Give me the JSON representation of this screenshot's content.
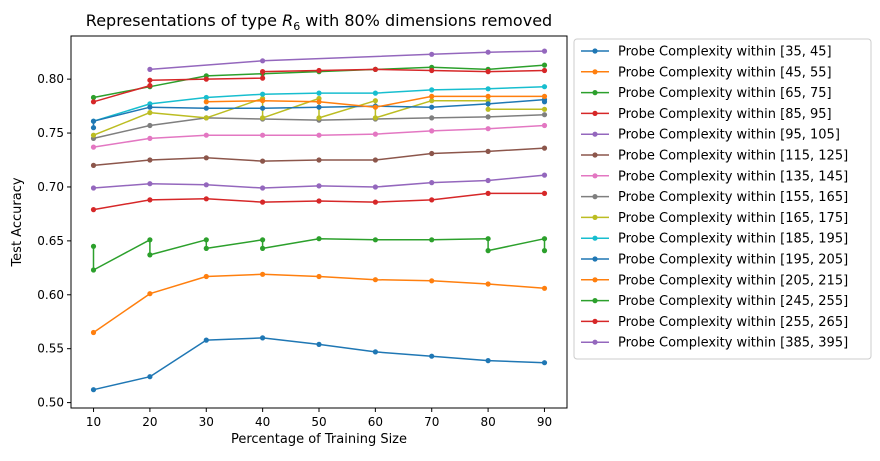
{
  "chart_data": {
    "type": "line",
    "title_prefix": "Representations of type ",
    "title_symbol": "R",
    "title_subscript": "6",
    "title_suffix": " with 80% dimensions removed",
    "xlabel": "Percentage of Training Size",
    "ylabel": "Test Accuracy",
    "xlim": [
      6,
      94
    ],
    "ylim": [
      0.495,
      0.84
    ],
    "xticks": [
      10,
      20,
      30,
      40,
      50,
      60,
      70,
      80,
      90
    ],
    "yticks": [
      0.5,
      0.55,
      0.6,
      0.65,
      0.7,
      0.75,
      0.8
    ],
    "ytick_labels": [
      "0.50",
      "0.55",
      "0.60",
      "0.65",
      "0.70",
      "0.75",
      "0.80"
    ],
    "grid": false,
    "legend_position": "outside-right",
    "series": [
      {
        "name": "Probe Complexity within [35, 45]",
        "color": "#1f77b4",
        "points": [
          [
            10,
            0.512
          ],
          [
            20,
            0.524
          ],
          [
            30,
            0.558
          ],
          [
            40,
            0.56
          ],
          [
            50,
            0.554
          ],
          [
            60,
            0.547
          ],
          [
            70,
            0.543
          ],
          [
            80,
            0.539
          ],
          [
            90,
            0.537
          ]
        ]
      },
      {
        "name": "Probe Complexity within [45, 55]",
        "color": "#ff7f0e",
        "points": [
          [
            10,
            0.565
          ],
          [
            20,
            0.601
          ],
          [
            30,
            0.617
          ],
          [
            40,
            0.619
          ],
          [
            50,
            0.617
          ],
          [
            60,
            0.614
          ],
          [
            70,
            0.613
          ],
          [
            80,
            0.61
          ],
          [
            90,
            0.606
          ]
        ]
      },
      {
        "name": "Probe Complexity within [65, 75]",
        "color": "#2ca02c",
        "points": [
          [
            10,
            0.645
          ],
          [
            10,
            0.623
          ],
          [
            20,
            0.651
          ],
          [
            20,
            0.637
          ],
          [
            30,
            0.651
          ],
          [
            30,
            0.643
          ],
          [
            40,
            0.651
          ],
          [
            40,
            0.643
          ],
          [
            50,
            0.652
          ],
          [
            60,
            0.651
          ],
          [
            70,
            0.651
          ],
          [
            80,
            0.652
          ],
          [
            80,
            0.641
          ],
          [
            90,
            0.652
          ],
          [
            90,
            0.641
          ]
        ]
      },
      {
        "name": "Probe Complexity within [85, 95]",
        "color": "#d62728",
        "points": [
          [
            10,
            0.679
          ],
          [
            20,
            0.688
          ],
          [
            30,
            0.689
          ],
          [
            40,
            0.686
          ],
          [
            50,
            0.687
          ],
          [
            60,
            0.686
          ],
          [
            70,
            0.688
          ],
          [
            80,
            0.694
          ],
          [
            90,
            0.694
          ]
        ]
      },
      {
        "name": "Probe Complexity within [95, 105]",
        "color": "#9467bd",
        "points": [
          [
            10,
            0.699
          ],
          [
            20,
            0.703
          ],
          [
            30,
            0.702
          ],
          [
            40,
            0.699
          ],
          [
            50,
            0.701
          ],
          [
            60,
            0.7
          ],
          [
            70,
            0.704
          ],
          [
            80,
            0.706
          ],
          [
            90,
            0.711
          ]
        ]
      },
      {
        "name": "Probe Complexity within [115, 125]",
        "color": "#8c564b",
        "points": [
          [
            10,
            0.72
          ],
          [
            20,
            0.725
          ],
          [
            30,
            0.727
          ],
          [
            40,
            0.724
          ],
          [
            50,
            0.725
          ],
          [
            60,
            0.725
          ],
          [
            70,
            0.731
          ],
          [
            80,
            0.733
          ],
          [
            90,
            0.736
          ]
        ]
      },
      {
        "name": "Probe Complexity within [135, 145]",
        "color": "#e377c2",
        "points": [
          [
            10,
            0.737
          ],
          [
            20,
            0.745
          ],
          [
            30,
            0.748
          ],
          [
            40,
            0.748
          ],
          [
            50,
            0.748
          ],
          [
            60,
            0.749
          ],
          [
            70,
            0.752
          ],
          [
            80,
            0.754
          ],
          [
            90,
            0.757
          ]
        ]
      },
      {
        "name": "Probe Complexity within [155, 165]",
        "color": "#7f7f7f",
        "points": [
          [
            10,
            0.745
          ],
          [
            20,
            0.757
          ],
          [
            30,
            0.764
          ],
          [
            40,
            0.763
          ],
          [
            50,
            0.762
          ],
          [
            60,
            0.763
          ],
          [
            70,
            0.764
          ],
          [
            80,
            0.765
          ],
          [
            90,
            0.767
          ]
        ]
      },
      {
        "name": "Probe Complexity within [165, 175]",
        "color": "#bcbd22",
        "points": [
          [
            10,
            0.748
          ],
          [
            20,
            0.769
          ],
          [
            30,
            0.764
          ],
          [
            40,
            0.782
          ],
          [
            40,
            0.764
          ],
          [
            50,
            0.782
          ],
          [
            50,
            0.764
          ],
          [
            60,
            0.78
          ],
          [
            60,
            0.764
          ],
          [
            70,
            0.78
          ],
          [
            80,
            0.78
          ],
          [
            80,
            0.772
          ],
          [
            90,
            0.772
          ]
        ]
      },
      {
        "name": "Probe Complexity within [185, 195]",
        "color": "#17becf",
        "points": [
          [
            10,
            0.761
          ],
          [
            20,
            0.777
          ],
          [
            30,
            0.783
          ],
          [
            40,
            0.786
          ],
          [
            50,
            0.787
          ],
          [
            60,
            0.787
          ],
          [
            70,
            0.79
          ],
          [
            80,
            0.791
          ],
          [
            90,
            0.793
          ]
        ]
      },
      {
        "name": "Probe Complexity within [195, 205]",
        "color": "#1f77b4",
        "points": [
          [
            10,
            0.755
          ],
          [
            10,
            0.761
          ],
          [
            20,
            0.774
          ],
          [
            30,
            0.773
          ],
          [
            40,
            0.773
          ],
          [
            50,
            0.774
          ],
          [
            60,
            0.775
          ],
          [
            70,
            0.774
          ],
          [
            80,
            0.777
          ],
          [
            90,
            0.781
          ],
          [
            90,
            0.779
          ]
        ]
      },
      {
        "name": "Probe Complexity within [205, 215]",
        "color": "#ff7f0e",
        "points": [
          [
            30,
            0.779
          ],
          [
            40,
            0.78
          ],
          [
            50,
            0.779
          ],
          [
            60,
            0.774
          ],
          [
            70,
            0.784
          ],
          [
            80,
            0.784
          ],
          [
            90,
            0.784
          ]
        ]
      },
      {
        "name": "Probe Complexity within [245, 255]",
        "color": "#2ca02c",
        "points": [
          [
            10,
            0.783
          ],
          [
            20,
            0.793
          ],
          [
            30,
            0.803
          ],
          [
            40,
            0.805
          ],
          [
            50,
            0.807
          ],
          [
            60,
            0.809
          ],
          [
            70,
            0.811
          ],
          [
            80,
            0.809
          ],
          [
            90,
            0.813
          ]
        ]
      },
      {
        "name": "Probe Complexity within [255, 265]",
        "color": "#d62728",
        "points": [
          [
            10,
            0.779
          ],
          [
            20,
            0.794
          ],
          [
            20,
            0.799
          ],
          [
            30,
            0.8
          ],
          [
            40,
            0.801
          ],
          [
            40,
            0.807
          ],
          [
            50,
            0.808
          ],
          [
            60,
            0.809
          ],
          [
            70,
            0.808
          ],
          [
            80,
            0.807
          ],
          [
            90,
            0.808
          ]
        ]
      },
      {
        "name": "Probe Complexity within [385, 395]",
        "color": "#9467bd",
        "points": [
          [
            20,
            0.809
          ],
          [
            40,
            0.817
          ],
          [
            70,
            0.823
          ],
          [
            80,
            0.825
          ],
          [
            90,
            0.826
          ]
        ]
      }
    ]
  }
}
